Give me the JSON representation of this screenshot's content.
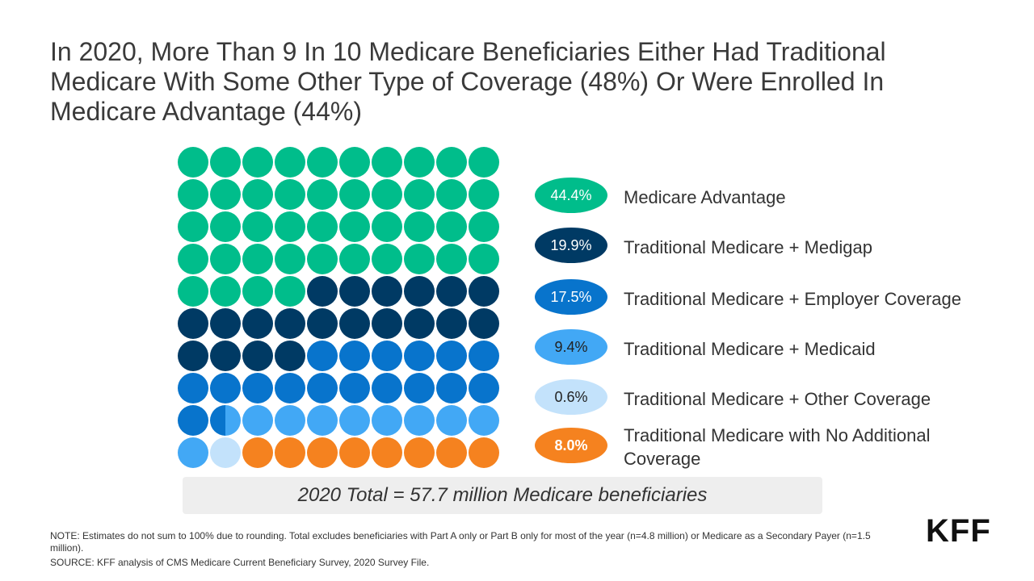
{
  "title": "In 2020, More Than 9 In 10 Medicare Beneficiaries Either Had Traditional Medicare With Some Other Type of Coverage (48%) Or Were Enrolled In Medicare Advantage (44%)",
  "chart_data": {
    "type": "waffle",
    "grid": {
      "rows": 10,
      "cols": 10
    },
    "categories": [
      {
        "label": "Medicare Advantage",
        "value": 44.4,
        "display": "44.4%",
        "color": "#00BD8B",
        "text_color": "#ffffff",
        "bold": false
      },
      {
        "label": "Traditional Medicare + Medigap",
        "value": 19.9,
        "display": "19.9%",
        "color": "#003A64",
        "text_color": "#ffffff",
        "bold": false
      },
      {
        "label": "Traditional Medicare + Employer Coverage",
        "value": 17.5,
        "display": "17.5%",
        "color": "#0874CC",
        "text_color": "#ffffff",
        "bold": false
      },
      {
        "label": "Traditional Medicare + Medicaid",
        "value": 9.4,
        "display": "9.4%",
        "color": "#42A8F5",
        "text_color": "#222222",
        "bold": false
      },
      {
        "label": "Traditional Medicare + Other Coverage",
        "value": 0.6,
        "display": "0.6%",
        "color": "#C3E2FB",
        "text_color": "#222222",
        "bold": false
      },
      {
        "label": "Traditional Medicare with No Additional Coverage",
        "value": 8.0,
        "display": "8.0%",
        "color": "#F5821F",
        "text_color": "#ffffff",
        "bold": true
      }
    ],
    "cells": [
      0,
      0,
      0,
      0,
      0,
      0,
      0,
      0,
      0,
      0,
      0,
      0,
      0,
      0,
      0,
      0,
      0,
      0,
      0,
      0,
      0,
      0,
      0,
      0,
      0,
      0,
      0,
      0,
      0,
      0,
      0,
      0,
      0,
      0,
      0,
      0,
      0,
      0,
      0,
      0,
      0,
      0,
      0,
      0,
      1,
      1,
      1,
      1,
      1,
      1,
      1,
      1,
      1,
      1,
      1,
      1,
      1,
      1,
      1,
      1,
      1,
      1,
      1,
      1,
      2,
      2,
      2,
      2,
      2,
      2,
      2,
      2,
      2,
      2,
      2,
      2,
      2,
      2,
      2,
      2,
      2,
      [
        2,
        3
      ],
      3,
      3,
      3,
      3,
      3,
      3,
      3,
      3,
      3,
      4,
      5,
      5,
      5,
      5,
      5,
      5,
      5,
      5
    ]
  },
  "total": "2020 Total = 57.7 million Medicare beneficiaries",
  "note": "NOTE: Estimates do not sum to 100% due to rounding. Total excludes beneficiaries with Part A only or Part B only for most of the year (n=4.8 million) or Medicare as a Secondary Payer (n=1.5 million).",
  "source": "SOURCE:  KFF analysis of CMS Medicare Current Beneficiary Survey, 2020 Survey File.",
  "logo": "KFF"
}
